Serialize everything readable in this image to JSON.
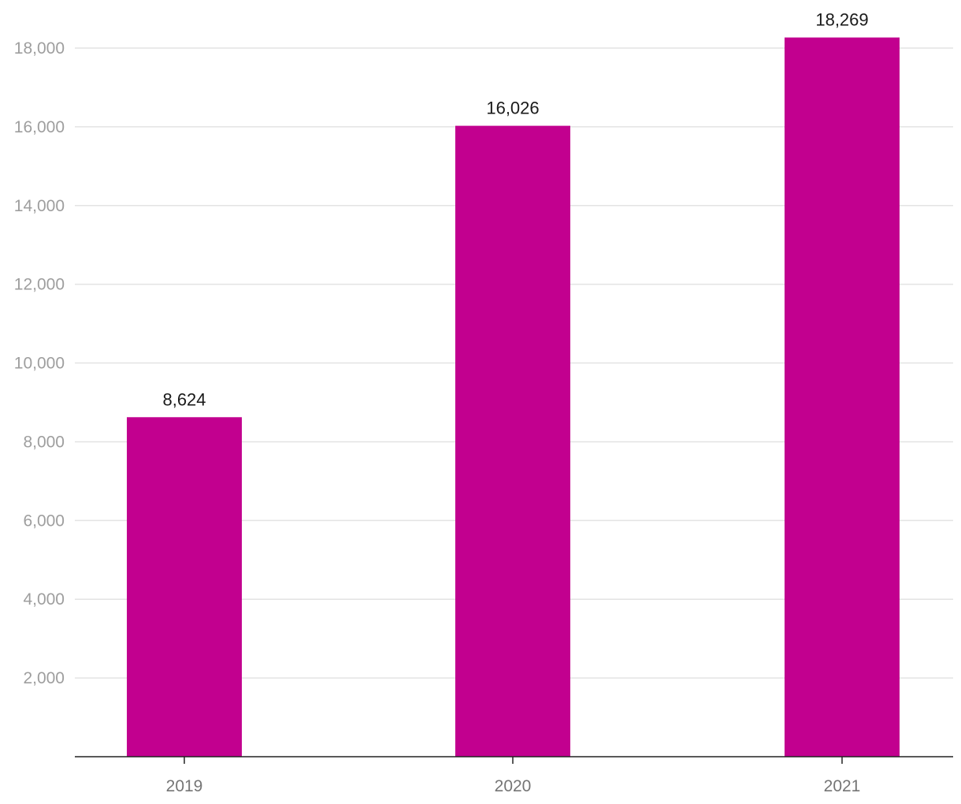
{
  "chart_data": {
    "type": "bar",
    "categories": [
      "2019",
      "2020",
      "2021"
    ],
    "values": [
      8624,
      16026,
      18269
    ],
    "value_labels": [
      "8,624",
      "16,026",
      "18,269"
    ],
    "ylim": [
      0,
      18000
    ],
    "yticks": [
      2000,
      4000,
      6000,
      8000,
      10000,
      12000,
      14000,
      16000,
      18000
    ],
    "ytick_labels": [
      "2,000",
      "4,000",
      "6,000",
      "8,000",
      "10,000",
      "12,000",
      "14,000",
      "16,000",
      "18,000"
    ],
    "grid": true,
    "legend": "none",
    "colors": {
      "bar": "#c2008f"
    }
  }
}
